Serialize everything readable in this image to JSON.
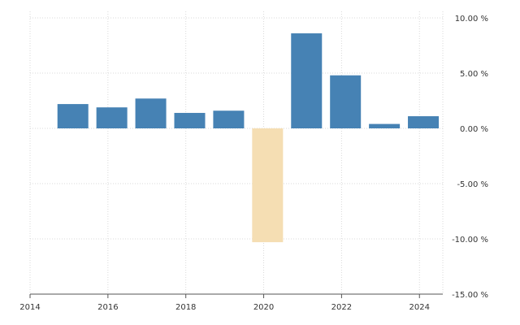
{
  "chart_data": {
    "type": "bar",
    "categories": [
      "2015",
      "2016",
      "2017",
      "2018",
      "2019",
      "2020",
      "2021",
      "2022",
      "2023",
      "2024"
    ],
    "values": [
      2.2,
      1.9,
      2.7,
      1.4,
      1.6,
      -10.3,
      8.6,
      4.8,
      0.4,
      1.1
    ],
    "x_ticks": [
      "2014",
      "2016",
      "2018",
      "2020",
      "2022",
      "2024"
    ],
    "y_ticks": [
      "10.00 %",
      "5.00 %",
      "0.00 %",
      "-5.00 %",
      "-10.00 %",
      "-15.00 %"
    ],
    "ylim": [
      -15,
      10
    ],
    "grid": true,
    "title": "",
    "xlabel": "",
    "ylabel": "",
    "colors": {
      "positive": "#4682b4",
      "negative": "#f5deb3",
      "grid": "#d9d9d9"
    }
  }
}
